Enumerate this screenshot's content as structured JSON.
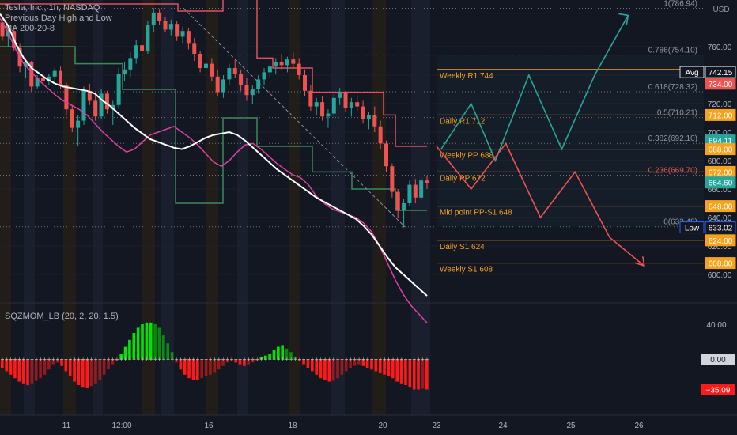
{
  "legend": {
    "symbol": "Tesla, Inc., 1h, NASDAQ",
    "indicator1": "Previous Day High and Low",
    "indicator2": "MA 200-20-8",
    "oscillator": "SQZMOM_LB (20, 2, 20, 1.5)"
  },
  "colors": {
    "background": "#131722",
    "up": "#26a69a",
    "down": "#ef5350",
    "level": "#f7a21b",
    "ma_slow": "#ffffff",
    "ma_fast": "#e040a0",
    "prev_high": "#e05060",
    "prev_low": "#3a8a5a",
    "projection_up": "#26a69a",
    "projection_down": "#ef5350",
    "mom_green": "#00e600",
    "mom_red": "#ff1a1a"
  },
  "chart_data": {
    "type": "candlestick",
    "currency": "USD",
    "yticks": [
      760,
      740,
      720,
      700,
      680,
      660,
      640,
      620,
      600
    ],
    "xticks": [
      "11",
      "12:00",
      "16",
      "18",
      "20",
      "23",
      "24",
      "25",
      "26"
    ],
    "levels": [
      {
        "label": "Weekly R1 744",
        "value": 744
      },
      {
        "label": "Daily R1 712",
        "value": 712
      },
      {
        "label": "Weekly PP 688",
        "value": 688
      },
      {
        "label": "Daily PP 672",
        "value": 672
      },
      {
        "label": "Mid point PP-S1 648",
        "value": 648
      },
      {
        "label": "Daily S1 624",
        "value": 624
      },
      {
        "label": "Weekly S1 608",
        "value": 608
      }
    ],
    "fib_levels": [
      {
        "label": "1(786.94)",
        "value": 786.94
      },
      {
        "label": "0.786(754.10)",
        "value": 754.1
      },
      {
        "label": "0.618(728.32)",
        "value": 728.32
      },
      {
        "label": "0.5(710.21)",
        "value": 710.21
      },
      {
        "label": "0.382(692.10)",
        "value": 692.1
      },
      {
        "label": "0.236(669.70)",
        "value": 669.7
      },
      {
        "label": "0(633.48)",
        "value": 633.48
      }
    ],
    "price_tags": [
      {
        "label": "Avg",
        "value": "742.15",
        "price": 742.15,
        "color": "#131722",
        "border": "#d1d4dc"
      },
      {
        "label": "",
        "value": "734.00",
        "price": 734,
        "color": "#ef5350"
      },
      {
        "label": "",
        "value": "712.00",
        "price": 712,
        "color": "#f7a21b"
      },
      {
        "label": "",
        "value": "694.11",
        "price": 694.11,
        "color": "#26a69a"
      },
      {
        "label": "",
        "value": "688.00",
        "price": 688,
        "color": "#f7a21b"
      },
      {
        "label": "",
        "value": "672.00",
        "price": 672,
        "color": "#f7a21b"
      },
      {
        "label": "",
        "value": "664.60",
        "price": 664.6,
        "color": "#26a69a"
      },
      {
        "label": "",
        "value": "648.00",
        "price": 648,
        "color": "#f7a21b"
      },
      {
        "label": "Low",
        "value": "633.02",
        "price": 633.02,
        "color": "#131722",
        "border": "#2962ff"
      },
      {
        "label": "",
        "value": "624.00",
        "price": 624,
        "color": "#f7a21b"
      },
      {
        "label": "",
        "value": "608.00",
        "price": 608,
        "color": "#f7a21b"
      }
    ],
    "candles": [
      [
        777,
        779,
        764,
        767
      ],
      [
        767,
        774,
        760,
        771
      ],
      [
        771,
        773,
        757,
        759
      ],
      [
        759,
        762,
        742,
        746
      ],
      [
        746,
        752,
        738,
        749
      ],
      [
        749,
        750,
        728,
        732
      ],
      [
        732,
        740,
        730,
        738
      ],
      [
        738,
        742,
        735,
        736
      ],
      [
        736,
        741,
        733,
        739
      ],
      [
        739,
        745,
        736,
        743
      ],
      [
        743,
        746,
        730,
        733
      ],
      [
        733,
        735,
        712,
        716
      ],
      [
        716,
        719,
        700,
        703
      ],
      [
        703,
        712,
        690,
        708
      ],
      [
        708,
        732,
        705,
        729
      ],
      [
        729,
        734,
        719,
        722
      ],
      [
        722,
        726,
        708,
        711
      ],
      [
        711,
        730,
        709,
        727
      ],
      [
        727,
        729,
        713,
        716
      ],
      [
        716,
        722,
        705,
        719
      ],
      [
        719,
        745,
        717,
        741
      ],
      [
        741,
        749,
        736,
        744
      ],
      [
        744,
        756,
        739,
        752
      ],
      [
        752,
        765,
        748,
        761
      ],
      [
        761,
        767,
        754,
        757
      ],
      [
        757,
        778,
        755,
        775
      ],
      [
        775,
        787,
        770,
        784
      ],
      [
        784,
        786,
        775,
        778
      ],
      [
        778,
        781,
        770,
        772
      ],
      [
        772,
        779,
        768,
        776
      ],
      [
        776,
        778,
        764,
        767
      ],
      [
        767,
        774,
        762,
        771
      ],
      [
        771,
        773,
        758,
        762
      ],
      [
        762,
        766,
        750,
        755
      ],
      [
        755,
        757,
        742,
        745
      ],
      [
        745,
        751,
        739,
        748
      ],
      [
        748,
        752,
        736,
        739
      ],
      [
        739,
        744,
        725,
        728
      ],
      [
        728,
        740,
        724,
        737
      ],
      [
        737,
        748,
        733,
        745
      ],
      [
        745,
        751,
        738,
        741
      ],
      [
        741,
        744,
        729,
        733
      ],
      [
        733,
        738,
        722,
        726
      ],
      [
        726,
        733,
        720,
        730
      ],
      [
        730,
        740,
        727,
        737
      ],
      [
        737,
        745,
        733,
        742
      ],
      [
        742,
        748,
        738,
        746
      ],
      [
        746,
        752,
        741,
        749
      ],
      [
        749,
        755,
        744,
        747
      ],
      [
        747,
        753,
        742,
        751
      ],
      [
        751,
        756,
        745,
        748
      ],
      [
        748,
        752,
        737,
        740
      ],
      [
        740,
        744,
        725,
        729
      ],
      [
        729,
        733,
        715,
        718
      ],
      [
        718,
        724,
        712,
        721
      ],
      [
        721,
        725,
        708,
        711
      ],
      [
        711,
        716,
        703,
        713
      ],
      [
        713,
        727,
        710,
        724
      ],
      [
        724,
        731,
        719,
        728
      ],
      [
        728,
        729,
        714,
        717
      ],
      [
        717,
        724,
        711,
        721
      ],
      [
        721,
        726,
        715,
        718
      ],
      [
        718,
        722,
        706,
        709
      ],
      [
        709,
        714,
        702,
        712
      ],
      [
        712,
        718,
        700,
        704
      ],
      [
        704,
        708,
        688,
        692
      ],
      [
        692,
        694,
        672,
        676
      ],
      [
        676,
        678,
        654,
        658
      ],
      [
        658,
        660,
        640,
        645
      ],
      [
        645,
        653,
        633,
        650
      ],
      [
        650,
        666,
        648,
        663
      ],
      [
        663,
        667,
        650,
        654
      ],
      [
        654,
        668,
        652,
        666
      ],
      [
        666,
        669,
        660,
        664
      ]
    ],
    "ma_slow": [
      [
        0,
        783
      ],
      [
        10,
        775
      ],
      [
        20,
        762
      ],
      [
        30,
        752
      ],
      [
        40,
        745
      ],
      [
        50,
        741
      ],
      [
        60,
        737
      ],
      [
        70,
        734
      ],
      [
        80,
        732
      ],
      [
        90,
        731
      ],
      [
        100,
        730
      ],
      [
        110,
        729
      ],
      [
        120,
        727
      ],
      [
        130,
        722
      ],
      [
        140,
        718
      ],
      [
        150,
        713
      ],
      [
        160,
        708
      ],
      [
        170,
        703
      ],
      [
        180,
        699
      ],
      [
        190,
        695
      ],
      [
        200,
        693
      ],
      [
        210,
        691
      ],
      [
        220,
        689
      ],
      [
        230,
        688
      ],
      [
        240,
        690
      ],
      [
        250,
        693
      ],
      [
        260,
        696
      ],
      [
        270,
        698
      ],
      [
        280,
        699
      ],
      [
        290,
        700
      ],
      [
        300,
        698
      ],
      [
        310,
        694
      ],
      [
        320,
        689
      ],
      [
        330,
        684
      ],
      [
        340,
        679
      ],
      [
        350,
        674
      ],
      [
        360,
        670
      ],
      [
        370,
        666
      ],
      [
        380,
        662
      ],
      [
        390,
        658
      ],
      [
        400,
        654
      ],
      [
        410,
        651
      ],
      [
        420,
        648
      ],
      [
        430,
        645
      ],
      [
        440,
        642
      ],
      [
        450,
        639
      ],
      [
        460,
        634
      ],
      [
        470,
        628
      ],
      [
        480,
        620
      ],
      [
        490,
        612
      ],
      [
        500,
        605
      ],
      [
        510,
        600
      ],
      [
        520,
        595
      ],
      [
        530,
        590
      ],
      [
        540,
        585
      ]
    ],
    "ma_fast": [
      [
        0,
        780
      ],
      [
        10,
        770
      ],
      [
        20,
        758
      ],
      [
        30,
        748
      ],
      [
        40,
        742
      ],
      [
        50,
        736
      ],
      [
        60,
        731
      ],
      [
        70,
        726
      ],
      [
        80,
        722
      ],
      [
        90,
        719
      ],
      [
        100,
        716
      ],
      [
        110,
        712
      ],
      [
        120,
        706
      ],
      [
        130,
        700
      ],
      [
        140,
        695
      ],
      [
        150,
        690
      ],
      [
        160,
        686
      ],
      [
        170,
        688
      ],
      [
        180,
        693
      ],
      [
        190,
        698
      ],
      [
        200,
        700
      ],
      [
        210,
        702
      ],
      [
        220,
        704
      ],
      [
        230,
        700
      ],
      [
        240,
        696
      ],
      [
        250,
        691
      ],
      [
        260,
        685
      ],
      [
        270,
        679
      ],
      [
        280,
        676
      ],
      [
        290,
        680
      ],
      [
        300,
        686
      ],
      [
        310,
        691
      ],
      [
        320,
        692
      ],
      [
        330,
        688
      ],
      [
        340,
        683
      ],
      [
        350,
        678
      ],
      [
        360,
        674
      ],
      [
        370,
        670
      ],
      [
        380,
        668
      ],
      [
        390,
        663
      ],
      [
        400,
        655
      ],
      [
        410,
        650
      ],
      [
        420,
        646
      ],
      [
        430,
        644
      ],
      [
        440,
        642
      ],
      [
        450,
        640
      ],
      [
        460,
        636
      ],
      [
        470,
        630
      ],
      [
        480,
        620
      ],
      [
        490,
        608
      ],
      [
        500,
        596
      ],
      [
        510,
        586
      ],
      [
        520,
        578
      ],
      [
        530,
        572
      ],
      [
        540,
        566
      ]
    ],
    "prev_high": [
      [
        0,
        790
      ],
      [
        225,
        790
      ],
      [
        225,
        785
      ],
      [
        282,
        785
      ],
      [
        282,
        795
      ],
      [
        325,
        795
      ],
      [
        325,
        752
      ],
      [
        345,
        752
      ],
      [
        345,
        745
      ],
      [
        395,
        745
      ],
      [
        395,
        728
      ],
      [
        485,
        728
      ],
      [
        485,
        712
      ],
      [
        500,
        712
      ],
      [
        500,
        690
      ],
      [
        540,
        690
      ]
    ],
    "prev_low": [
      [
        0,
        760
      ],
      [
        95,
        760
      ],
      [
        95,
        748
      ],
      [
        155,
        748
      ],
      [
        155,
        730
      ],
      [
        222,
        730
      ],
      [
        222,
        650
      ],
      [
        282,
        650
      ],
      [
        282,
        710
      ],
      [
        325,
        710
      ],
      [
        325,
        690
      ],
      [
        395,
        690
      ],
      [
        395,
        672
      ],
      [
        445,
        672
      ],
      [
        445,
        660
      ],
      [
        500,
        660
      ],
      [
        500,
        645
      ],
      [
        540,
        645
      ]
    ],
    "projection_up": [
      [
        648,
        688
      ],
      [
        700,
        720
      ],
      [
        742,
        680
      ],
      [
        800,
        740
      ],
      [
        857,
        688
      ],
      [
        914,
        740
      ],
      [
        972,
        782
      ]
    ],
    "projection_down": [
      [
        640,
        690
      ],
      [
        700,
        660
      ],
      [
        760,
        692
      ],
      [
        820,
        640
      ],
      [
        880,
        672
      ],
      [
        940,
        626
      ],
      [
        1000,
        606
      ]
    ],
    "momentum": [
      -10,
      -14,
      -18,
      -22,
      -26,
      -28,
      -30,
      -28,
      -25,
      -22,
      -18,
      -12,
      -6,
      -4,
      -8,
      -14,
      -20,
      -26,
      -30,
      -32,
      -33,
      -31,
      -28,
      -24,
      -18,
      -12,
      -6,
      -2,
      6,
      14,
      22,
      30,
      36,
      40,
      42,
      42,
      40,
      36,
      28,
      18,
      8,
      -4,
      -12,
      -18,
      -22,
      -24,
      -24,
      -22,
      -20,
      -18,
      -15,
      -12,
      -8,
      -4,
      -2,
      -4,
      -6,
      -8,
      -6,
      -4,
      -2,
      2,
      4,
      6,
      10,
      14,
      16,
      12,
      8,
      2,
      -2,
      -6,
      -10,
      -14,
      -18,
      -22,
      -24,
      -26,
      -25,
      -22,
      -18,
      -14,
      -10,
      -8,
      -6,
      -8,
      -10,
      -12,
      -14,
      -16,
      -18,
      -20,
      -22,
      -26,
      -28,
      -30,
      -32,
      -35,
      -35,
      -34,
      -35
    ],
    "osc_yticks": [
      40,
      0
    ],
    "osc_tags": [
      {
        "value": "0.00",
        "v": 0,
        "color": "#d1d4dc",
        "text": "#131722"
      },
      {
        "value": "−35.09",
        "v": -35.09,
        "color": "#ff1a1a",
        "text": "#ffffff"
      }
    ]
  }
}
